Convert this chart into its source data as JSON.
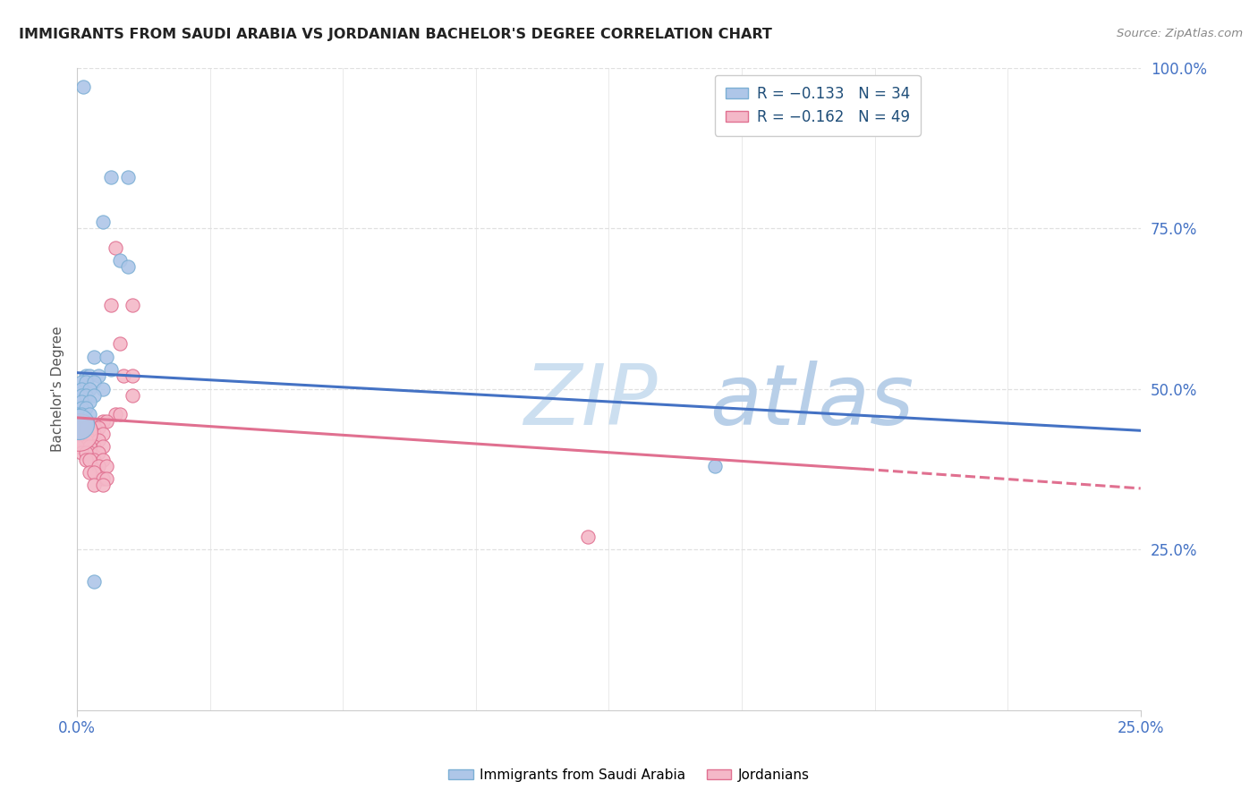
{
  "title": "IMMIGRANTS FROM SAUDI ARABIA VS JORDANIAN BACHELOR'S DEGREE CORRELATION CHART",
  "source": "Source: ZipAtlas.com",
  "ylabel": "Bachelor's Degree",
  "xlim": [
    0.0,
    0.25
  ],
  "ylim": [
    0.0,
    1.0
  ],
  "ytick_vals": [
    0.25,
    0.5,
    0.75,
    1.0
  ],
  "ytick_labels": [
    "25.0%",
    "50.0%",
    "75.0%",
    "100.0%"
  ],
  "xtick_vals": [
    0.0,
    0.25
  ],
  "xtick_labels": [
    "0.0%",
    "25.0%"
  ],
  "blue_scatter": [
    [
      0.0015,
      0.97
    ],
    [
      0.008,
      0.83
    ],
    [
      0.012,
      0.83
    ],
    [
      0.006,
      0.76
    ],
    [
      0.01,
      0.7
    ],
    [
      0.012,
      0.69
    ],
    [
      0.004,
      0.55
    ],
    [
      0.007,
      0.55
    ],
    [
      0.008,
      0.53
    ],
    [
      0.002,
      0.52
    ],
    [
      0.003,
      0.52
    ],
    [
      0.005,
      0.52
    ],
    [
      0.001,
      0.51
    ],
    [
      0.002,
      0.51
    ],
    [
      0.004,
      0.51
    ],
    [
      0.001,
      0.5
    ],
    [
      0.003,
      0.5
    ],
    [
      0.006,
      0.5
    ],
    [
      0.001,
      0.49
    ],
    [
      0.002,
      0.49
    ],
    [
      0.004,
      0.49
    ],
    [
      0.001,
      0.48
    ],
    [
      0.003,
      0.48
    ],
    [
      0.001,
      0.47
    ],
    [
      0.002,
      0.47
    ],
    [
      0.0,
      0.46
    ],
    [
      0.001,
      0.46
    ],
    [
      0.003,
      0.46
    ],
    [
      0.0,
      0.45
    ],
    [
      0.001,
      0.45
    ],
    [
      0.0,
      0.44
    ],
    [
      0.002,
      0.44
    ],
    [
      0.004,
      0.2
    ],
    [
      0.15,
      0.38
    ]
  ],
  "pink_scatter": [
    [
      0.009,
      0.72
    ],
    [
      0.008,
      0.63
    ],
    [
      0.013,
      0.63
    ],
    [
      0.01,
      0.57
    ],
    [
      0.011,
      0.52
    ],
    [
      0.013,
      0.52
    ],
    [
      0.013,
      0.49
    ],
    [
      0.009,
      0.46
    ],
    [
      0.01,
      0.46
    ],
    [
      0.006,
      0.45
    ],
    [
      0.007,
      0.45
    ],
    [
      0.004,
      0.44
    ],
    [
      0.005,
      0.44
    ],
    [
      0.002,
      0.44
    ],
    [
      0.003,
      0.44
    ],
    [
      0.0,
      0.44
    ],
    [
      0.001,
      0.44
    ],
    [
      0.004,
      0.43
    ],
    [
      0.006,
      0.43
    ],
    [
      0.001,
      0.43
    ],
    [
      0.002,
      0.43
    ],
    [
      0.0,
      0.43
    ],
    [
      0.003,
      0.42
    ],
    [
      0.005,
      0.42
    ],
    [
      0.001,
      0.42
    ],
    [
      0.002,
      0.42
    ],
    [
      0.0,
      0.42
    ],
    [
      0.004,
      0.41
    ],
    [
      0.006,
      0.41
    ],
    [
      0.002,
      0.41
    ],
    [
      0.003,
      0.41
    ],
    [
      0.0,
      0.41
    ],
    [
      0.003,
      0.4
    ],
    [
      0.005,
      0.4
    ],
    [
      0.001,
      0.4
    ],
    [
      0.002,
      0.4
    ],
    [
      0.004,
      0.39
    ],
    [
      0.006,
      0.39
    ],
    [
      0.002,
      0.39
    ],
    [
      0.003,
      0.39
    ],
    [
      0.005,
      0.38
    ],
    [
      0.007,
      0.38
    ],
    [
      0.003,
      0.37
    ],
    [
      0.004,
      0.37
    ],
    [
      0.006,
      0.36
    ],
    [
      0.007,
      0.36
    ],
    [
      0.004,
      0.35
    ],
    [
      0.006,
      0.35
    ],
    [
      0.12,
      0.27
    ]
  ],
  "blue_line": {
    "x": [
      0.0,
      0.25
    ],
    "y": [
      0.525,
      0.435
    ]
  },
  "pink_line_solid": {
    "x": [
      0.0,
      0.185
    ],
    "y": [
      0.455,
      0.375
    ]
  },
  "pink_line_dashed": {
    "x": [
      0.185,
      0.25
    ],
    "y": [
      0.375,
      0.345
    ]
  },
  "watermark_part1": "ZIP",
  "watermark_part2": "atlas",
  "watermark_color1": "#c5d8ef",
  "watermark_color2": "#b0c8e8",
  "title_color": "#222222",
  "blue_color": "#4472c4",
  "blue_scatter_color": "#aec6e8",
  "blue_scatter_edge": "#7bafd4",
  "pink_color": "#e07090",
  "pink_scatter_color": "#f4b8c8",
  "pink_scatter_edge": "#e07090",
  "axis_label_color": "#4472c4",
  "grid_color": "#e0e0e0",
  "background_color": "#ffffff",
  "source_color": "#888888",
  "legend_text_color": "#1f4e79"
}
